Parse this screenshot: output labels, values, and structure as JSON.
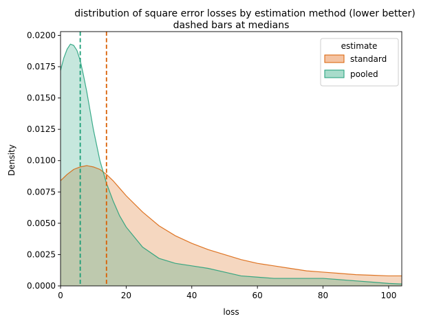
{
  "chart_data": {
    "type": "area",
    "title": "distribution of square error losses by estimation method (lower better)",
    "subtitle": "dashed bars at medians",
    "xlabel": "loss",
    "ylabel": "Density",
    "xlim": [
      0,
      104
    ],
    "ylim": [
      0,
      0.0203
    ],
    "xticks": [
      0,
      20,
      40,
      60,
      80,
      100
    ],
    "yticks": [
      0.0,
      0.0025,
      0.005,
      0.0075,
      0.01,
      0.0125,
      0.015,
      0.0175,
      0.02
    ],
    "xtick_labels": [
      "0",
      "20",
      "40",
      "60",
      "80",
      "100"
    ],
    "ytick_labels": [
      "0.0000",
      "0.0025",
      "0.0050",
      "0.0075",
      "0.0100",
      "0.0125",
      "0.0150",
      "0.0175",
      "0.0200"
    ],
    "legend": {
      "title": "estimate",
      "position": "top-right"
    },
    "series": [
      {
        "name": "standard",
        "color": "#d95f02",
        "fill": "#f4c3a2",
        "median": 14,
        "x": [
          0,
          2,
          4,
          6,
          8,
          10,
          12,
          14,
          16,
          18,
          20,
          25,
          30,
          35,
          40,
          45,
          50,
          55,
          60,
          65,
          70,
          75,
          80,
          85,
          90,
          95,
          100,
          104
        ],
        "y": [
          0.0084,
          0.0089,
          0.0093,
          0.0095,
          0.0096,
          0.0095,
          0.0093,
          0.0089,
          0.0084,
          0.0078,
          0.0072,
          0.0059,
          0.0048,
          0.004,
          0.0034,
          0.0029,
          0.0025,
          0.0021,
          0.0018,
          0.0016,
          0.0014,
          0.0012,
          0.0011,
          0.001,
          0.0009,
          0.00085,
          0.0008,
          0.0008
        ]
      },
      {
        "name": "pooled",
        "color": "#1b9e77",
        "fill": "#a8dccb",
        "median": 6,
        "x": [
          0,
          1,
          2,
          3,
          4,
          5,
          6,
          7,
          8,
          9,
          10,
          12,
          14,
          16,
          18,
          20,
          25,
          30,
          35,
          40,
          45,
          50,
          55,
          60,
          65,
          70,
          75,
          80,
          85,
          90,
          95,
          100,
          104
        ],
        "y": [
          0.0172,
          0.0182,
          0.0189,
          0.0193,
          0.0192,
          0.0188,
          0.018,
          0.0168,
          0.0155,
          0.014,
          0.0125,
          0.01,
          0.0082,
          0.0068,
          0.0056,
          0.0047,
          0.0031,
          0.0022,
          0.0018,
          0.0016,
          0.0014,
          0.0011,
          0.0008,
          0.0007,
          0.0006,
          0.0006,
          0.0006,
          0.0006,
          0.0005,
          0.0004,
          0.0003,
          0.0002,
          0.00015
        ]
      }
    ]
  }
}
